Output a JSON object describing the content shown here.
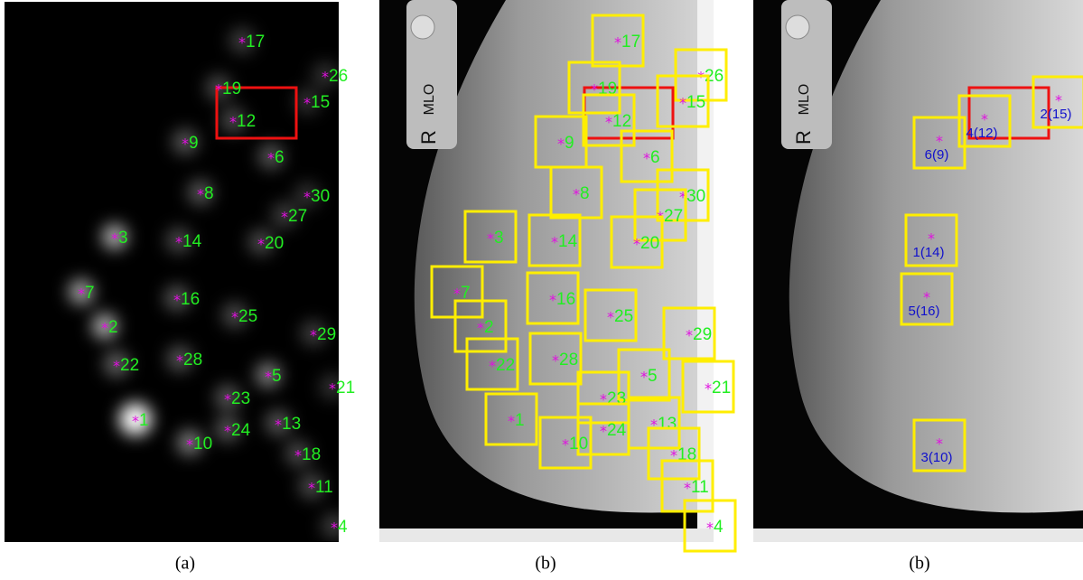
{
  "panels": [
    {
      "caption": "(a)",
      "points": [
        "17",
        "26",
        "19",
        "15",
        "12",
        "9",
        "6",
        "8",
        "30",
        "27",
        "3",
        "14",
        "20",
        "7",
        "16",
        "25",
        "2",
        "29",
        "22",
        "28",
        "5",
        "21",
        "23",
        "1",
        "13",
        "24",
        "10",
        "18",
        "11",
        "4"
      ]
    },
    {
      "caption": "(b)",
      "marker_side": "R",
      "marker_view": "MLO",
      "points": [
        "17",
        "26",
        "19",
        "15",
        "12",
        "9",
        "6",
        "8",
        "30",
        "27",
        "3",
        "14",
        "20",
        "7",
        "16",
        "25",
        "2",
        "29",
        "22",
        "28",
        "5",
        "21",
        "23",
        "1",
        "13",
        "24",
        "10",
        "18",
        "11",
        "4"
      ]
    },
    {
      "caption": "(b)",
      "marker_side": "R",
      "marker_view": "MLO",
      "points": [
        "6(9)",
        "4(12)",
        "2(15)",
        "1(14)",
        "5(16)",
        "3(10)"
      ]
    }
  ]
}
